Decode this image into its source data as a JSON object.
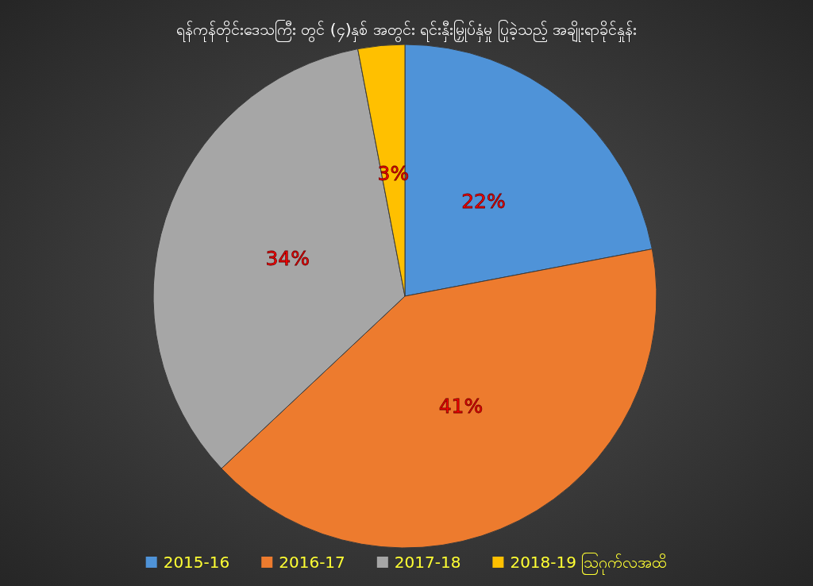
{
  "chart_data": {
    "type": "pie",
    "title": "ရန်ကုန်တိုင်းဒေသကြီး တွင် (၄)နှစ် အတွင်း ရင်းနှီးမြှုပ်နှံမှု ပြုခဲ့သည့် အချိုးရာခိုင်နှုန်း",
    "categories": [
      "2015-16",
      "2016-17",
      "2017-18",
      "2018-19 ဩဂုက်လအထိ"
    ],
    "values": [
      22,
      41,
      34,
      3
    ],
    "colors": [
      "#4f93d8",
      "#ed7b2e",
      "#a6a6a6",
      "#ffc000"
    ],
    "value_labels": [
      "22%",
      "41%",
      "34%",
      "3%"
    ],
    "legend": "bottom"
  }
}
